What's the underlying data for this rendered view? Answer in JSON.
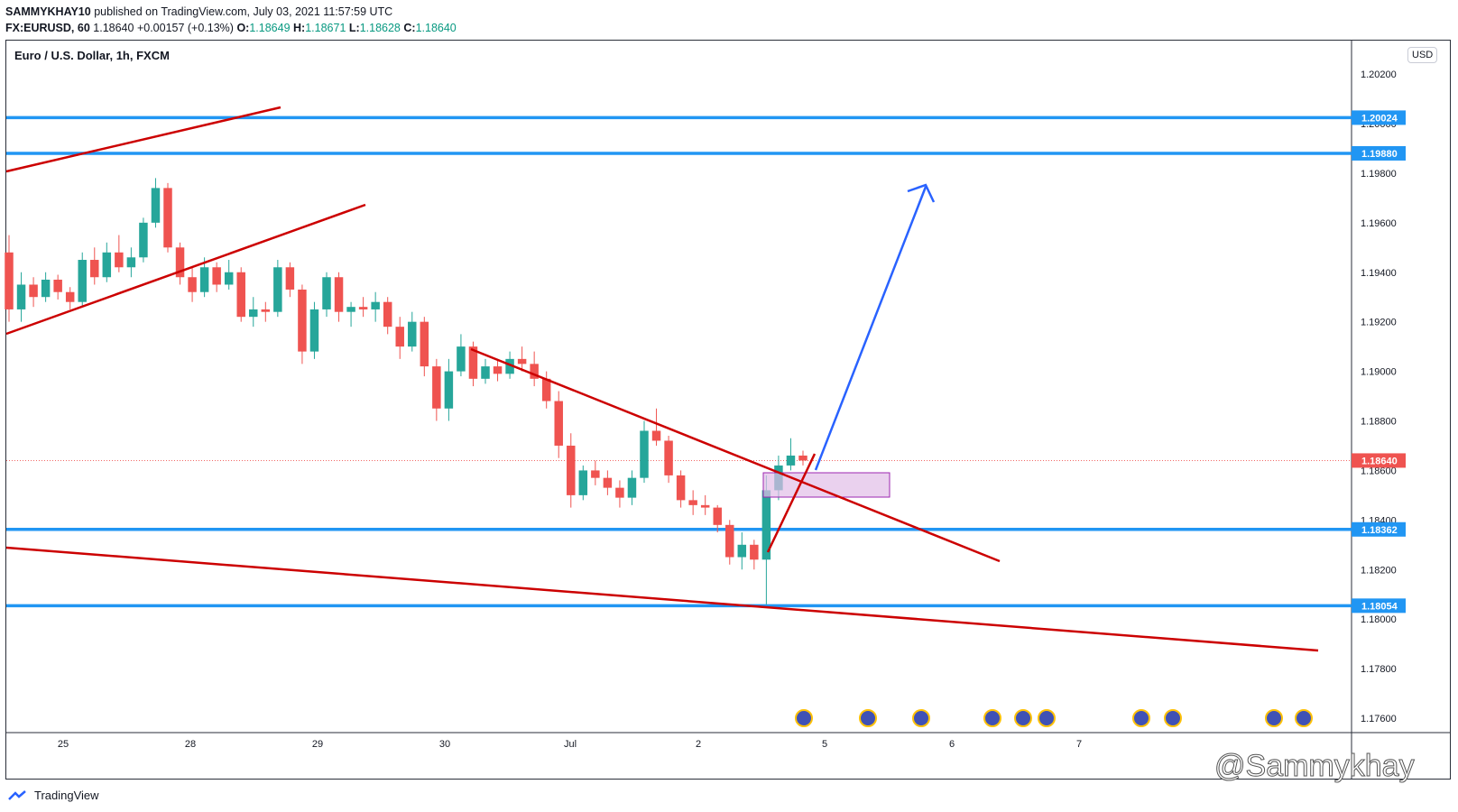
{
  "header": {
    "publisher": "SAMMYKHAY10",
    "published_text": "published on TradingView.com, July 03, 2021 11:57:59 UTC",
    "symbol": "FX:EURUSD, 60",
    "last": "1.18640",
    "change": "+0.00157 (+0.13%)",
    "o_label": "O:",
    "o": "1.18649",
    "h_label": "H:",
    "h": "1.18671",
    "l_label": "L:",
    "l": "1.18628",
    "c_label": "C:",
    "c": "1.18640"
  },
  "chart_title": "Euro / U.S. Dollar, 1h, FXCM",
  "currency": "USD",
  "footer": {
    "brand": "TradingView"
  },
  "watermark": "@Sammykhay",
  "colors": {
    "up": "#26a69a",
    "down": "#ef5350",
    "level": "#2196f3",
    "trend": "#cc0000",
    "zone": "#e1bee7",
    "arrow": "#2962ff",
    "price_line": "#ef5350"
  },
  "chart_data": {
    "type": "candlestick",
    "title": "Euro / U.S. Dollar, 1h, FXCM",
    "ylim": [
      1.175,
      1.205
    ],
    "y_ticks": [
      "1.20200",
      "1.20000",
      "1.19800",
      "1.19600",
      "1.19400",
      "1.19200",
      "1.19000",
      "1.18800",
      "1.18600",
      "1.18400",
      "1.18200",
      "1.18000",
      "1.17800",
      "1.17600"
    ],
    "x_ticks": [
      "25",
      "28",
      "29",
      "30",
      "Jul",
      "2",
      "5",
      "6",
      "7"
    ],
    "horizontal_levels": [
      1.20024,
      1.1988,
      1.18362,
      1.18054
    ],
    "current_price": 1.1864,
    "candles": [
      [
        1.1948,
        1.1955,
        1.192,
        1.1925
      ],
      [
        1.1925,
        1.194,
        1.192,
        1.1935
      ],
      [
        1.1935,
        1.1938,
        1.1926,
        1.193
      ],
      [
        1.193,
        1.194,
        1.1928,
        1.1937
      ],
      [
        1.1937,
        1.1939,
        1.1929,
        1.1932
      ],
      [
        1.1932,
        1.1934,
        1.1925,
        1.1928
      ],
      [
        1.1928,
        1.1948,
        1.1926,
        1.1945
      ],
      [
        1.1945,
        1.195,
        1.1935,
        1.1938
      ],
      [
        1.1938,
        1.1952,
        1.1936,
        1.1948
      ],
      [
        1.1948,
        1.1955,
        1.194,
        1.1942
      ],
      [
        1.1942,
        1.195,
        1.1938,
        1.1946
      ],
      [
        1.1946,
        1.1962,
        1.1944,
        1.196
      ],
      [
        1.196,
        1.1978,
        1.1958,
        1.1974
      ],
      [
        1.1974,
        1.1976,
        1.1948,
        1.195
      ],
      [
        1.195,
        1.1952,
        1.1935,
        1.1938
      ],
      [
        1.1938,
        1.1942,
        1.1928,
        1.1932
      ],
      [
        1.1932,
        1.1946,
        1.193,
        1.1942
      ],
      [
        1.1942,
        1.1944,
        1.1932,
        1.1935
      ],
      [
        1.1935,
        1.1945,
        1.1933,
        1.194
      ],
      [
        1.194,
        1.1942,
        1.192,
        1.1922
      ],
      [
        1.1922,
        1.193,
        1.1918,
        1.1925
      ],
      [
        1.1925,
        1.1928,
        1.192,
        1.1924
      ],
      [
        1.1924,
        1.1945,
        1.1922,
        1.1942
      ],
      [
        1.1942,
        1.1944,
        1.193,
        1.1933
      ],
      [
        1.1933,
        1.1935,
        1.1903,
        1.1908
      ],
      [
        1.1908,
        1.1928,
        1.1905,
        1.1925
      ],
      [
        1.1925,
        1.194,
        1.1922,
        1.1938
      ],
      [
        1.1938,
        1.194,
        1.192,
        1.1924
      ],
      [
        1.1924,
        1.1928,
        1.1918,
        1.1926
      ],
      [
        1.1926,
        1.193,
        1.1922,
        1.1925
      ],
      [
        1.1925,
        1.1932,
        1.192,
        1.1928
      ],
      [
        1.1928,
        1.193,
        1.1915,
        1.1918
      ],
      [
        1.1918,
        1.1922,
        1.1905,
        1.191
      ],
      [
        1.191,
        1.1924,
        1.1908,
        1.192
      ],
      [
        1.192,
        1.1922,
        1.1898,
        1.1902
      ],
      [
        1.1902,
        1.1905,
        1.188,
        1.1885
      ],
      [
        1.1885,
        1.1905,
        1.188,
        1.19
      ],
      [
        1.19,
        1.1915,
        1.1898,
        1.191
      ],
      [
        1.191,
        1.1912,
        1.1894,
        1.1897
      ],
      [
        1.1897,
        1.1905,
        1.1895,
        1.1902
      ],
      [
        1.1902,
        1.1905,
        1.1896,
        1.1899
      ],
      [
        1.1899,
        1.1908,
        1.1897,
        1.1905
      ],
      [
        1.1905,
        1.191,
        1.19,
        1.1903
      ],
      [
        1.1903,
        1.1908,
        1.1894,
        1.1897
      ],
      [
        1.1897,
        1.19,
        1.1885,
        1.1888
      ],
      [
        1.1888,
        1.1892,
        1.1865,
        1.187
      ],
      [
        1.187,
        1.1875,
        1.1845,
        1.185
      ],
      [
        1.185,
        1.1862,
        1.1848,
        1.186
      ],
      [
        1.186,
        1.1864,
        1.1854,
        1.1857
      ],
      [
        1.1857,
        1.186,
        1.185,
        1.1853
      ],
      [
        1.1853,
        1.1856,
        1.1845,
        1.1849
      ],
      [
        1.1849,
        1.186,
        1.1846,
        1.1857
      ],
      [
        1.1857,
        1.188,
        1.1855,
        1.1876
      ],
      [
        1.1876,
        1.1885,
        1.187,
        1.1872
      ],
      [
        1.1872,
        1.1874,
        1.1855,
        1.1858
      ],
      [
        1.1858,
        1.186,
        1.1845,
        1.1848
      ],
      [
        1.1848,
        1.1852,
        1.1842,
        1.1846
      ],
      [
        1.1846,
        1.185,
        1.1842,
        1.1845
      ],
      [
        1.1845,
        1.1846,
        1.1835,
        1.1838
      ],
      [
        1.1838,
        1.184,
        1.1822,
        1.1825
      ],
      [
        1.1825,
        1.1835,
        1.182,
        1.183
      ],
      [
        1.183,
        1.1832,
        1.182,
        1.1824
      ],
      [
        1.1824,
        1.1858,
        1.1806,
        1.1852
      ],
      [
        1.1852,
        1.1866,
        1.1848,
        1.1862
      ],
      [
        1.1862,
        1.1873,
        1.186,
        1.1866
      ],
      [
        1.1866,
        1.1868,
        1.1862,
        1.1864
      ]
    ]
  }
}
